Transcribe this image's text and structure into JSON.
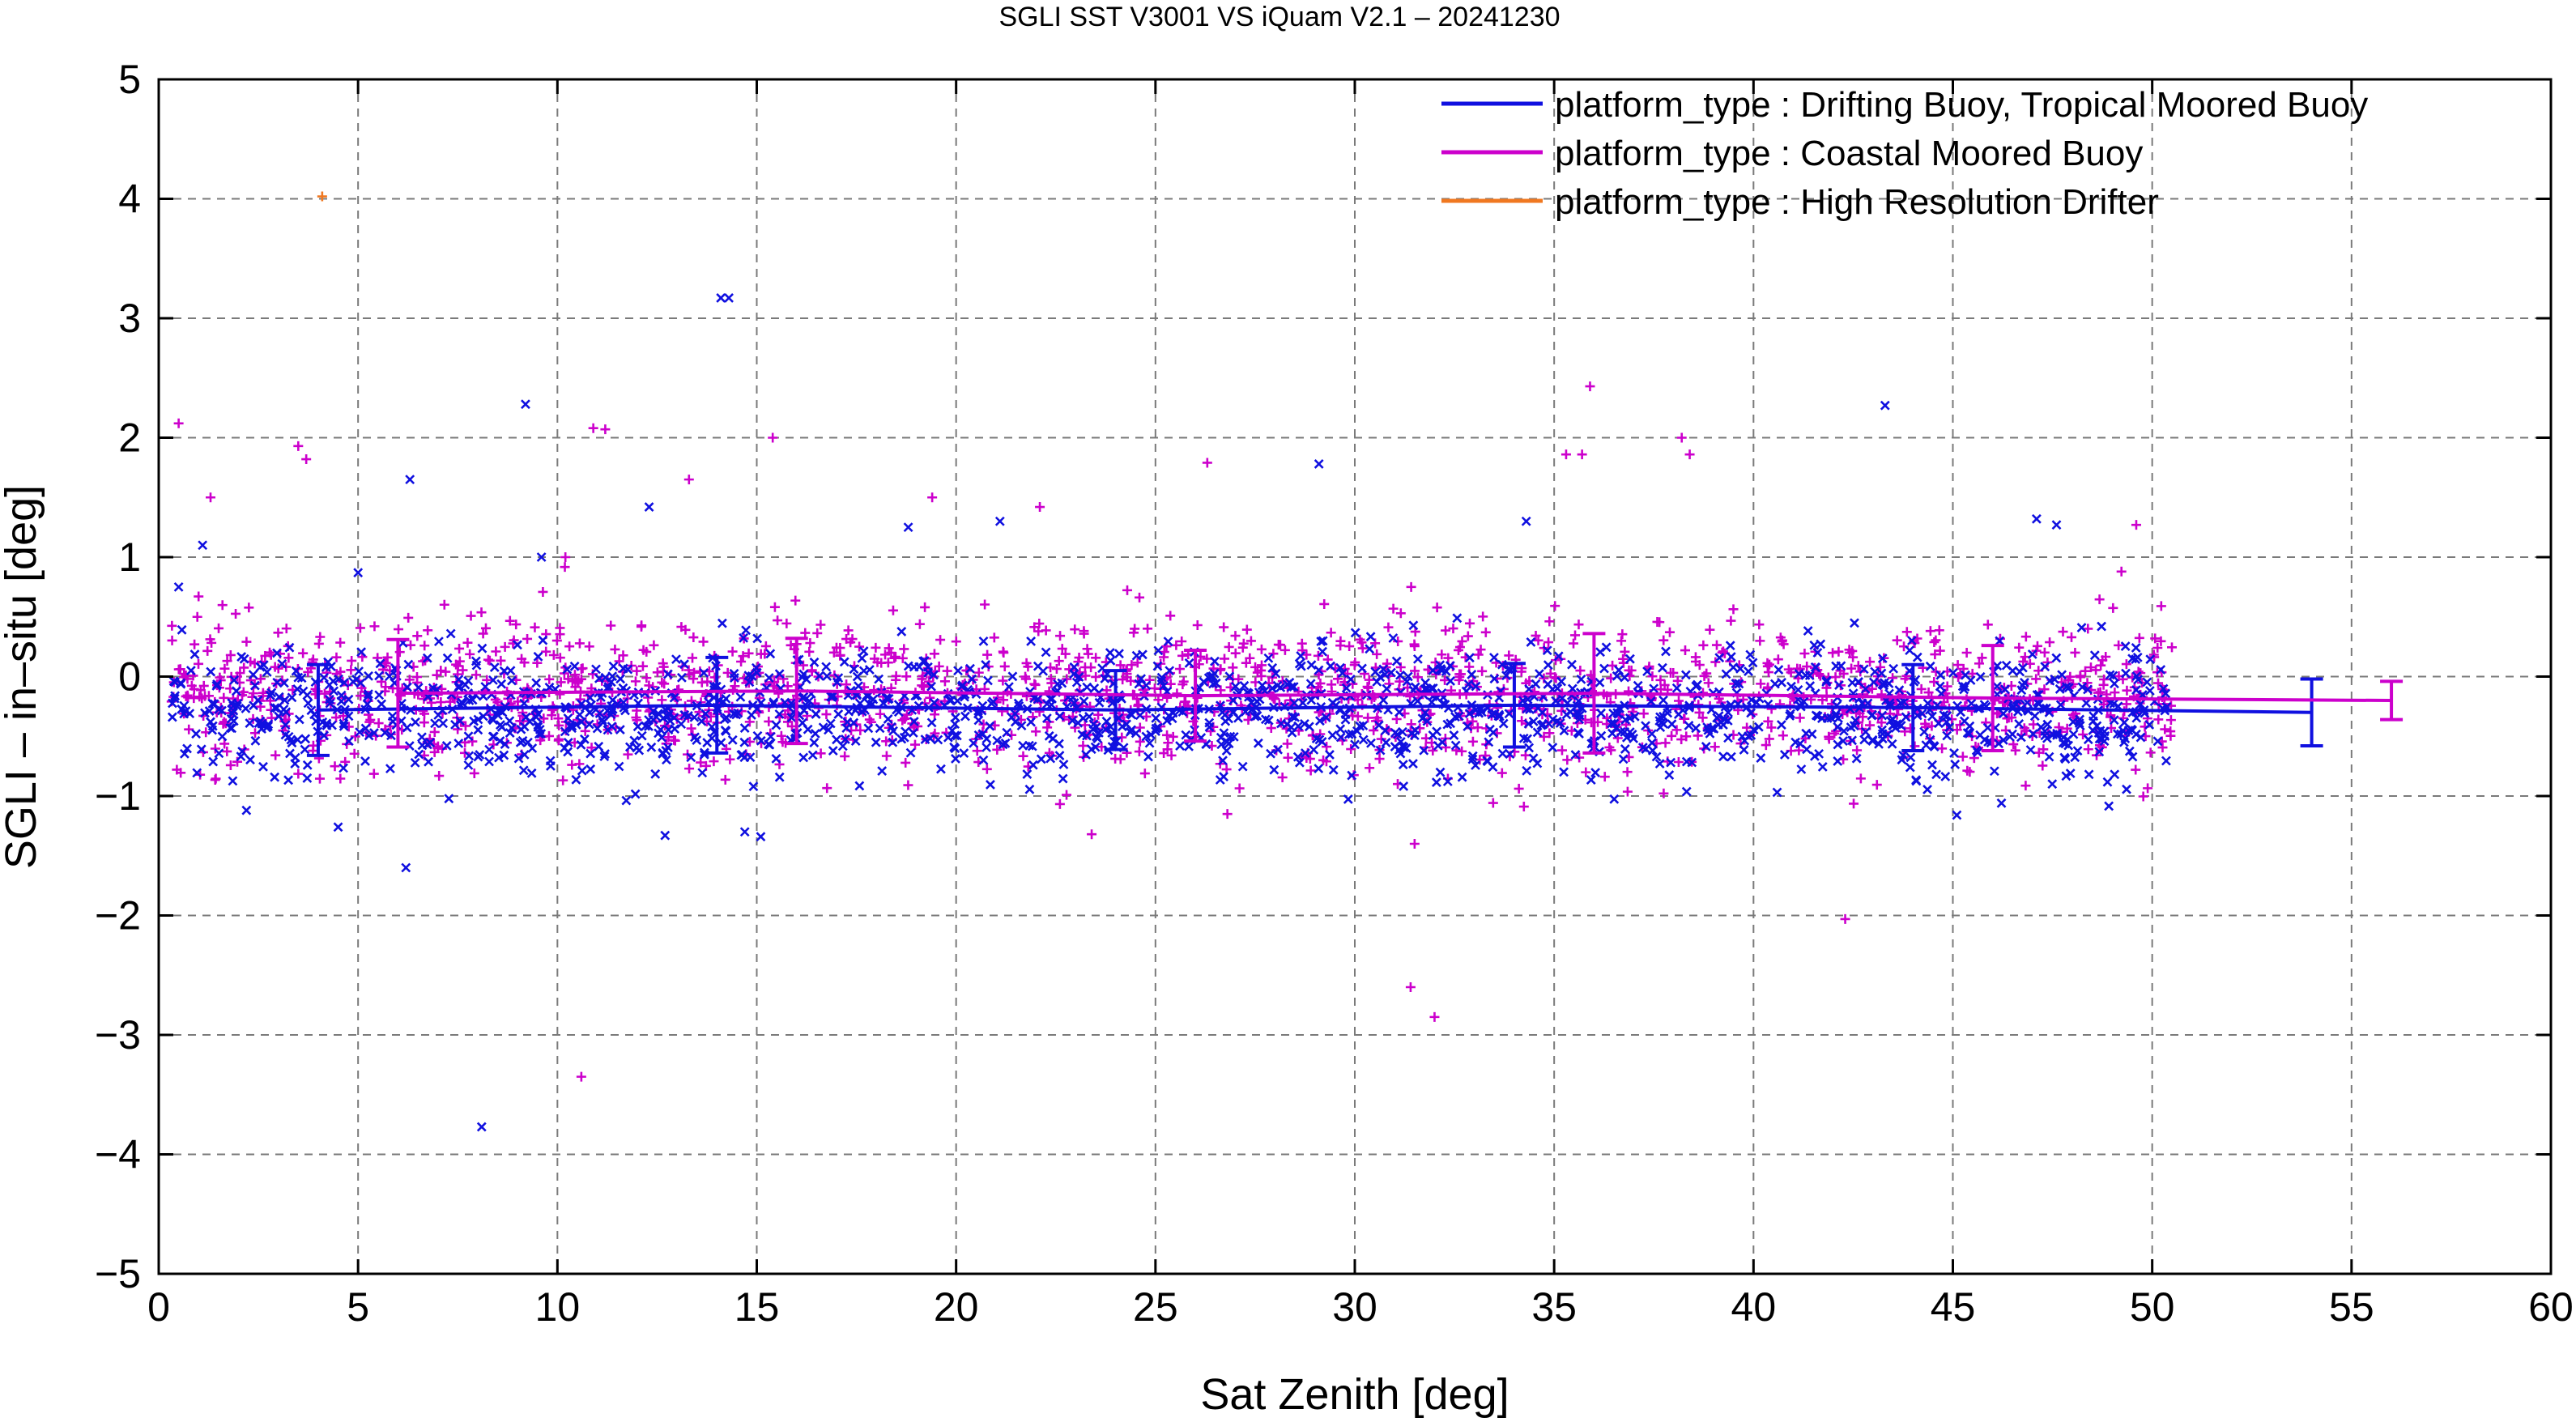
{
  "chart_data": {
    "type": "scatter",
    "title": "SGLI SST V3001 VS iQuam V2.1  – 20241230",
    "xlabel": "Sat Zenith [deg]",
    "ylabel": "SGLI – in–situ [deg]",
    "xlim": [
      0,
      60
    ],
    "ylim": [
      -5,
      5
    ],
    "xticks": [
      0,
      5,
      10,
      15,
      20,
      25,
      30,
      35,
      40,
      45,
      50,
      55,
      60
    ],
    "xtick_labels": [
      "0",
      "5",
      "10",
      "15",
      "20",
      "25",
      "30",
      "35",
      "40",
      "45",
      "50",
      "55",
      "60"
    ],
    "yticks": [
      -5,
      -4,
      -3,
      -2,
      -1,
      0,
      1,
      2,
      3,
      4,
      5
    ],
    "ytick_labels": [
      "−5",
      "−4",
      "−3",
      "−2",
      "−1",
      "0",
      "1",
      "2",
      "3",
      "4",
      "5"
    ],
    "grid": true,
    "legend_position": "top-right",
    "series": [
      {
        "name": "platform_type : Drifting Buoy, Tropical Moored Buoy",
        "color": "#1010e0",
        "marker": "x",
        "bin_mean": {
          "x": [
            4,
            14,
            24,
            34,
            44,
            54
          ],
          "y": [
            -0.28,
            -0.24,
            -0.28,
            -0.24,
            -0.26,
            -0.3
          ],
          "err": [
            0.38,
            0.4,
            0.33,
            0.35,
            0.36,
            0.28
          ]
        },
        "outliers": [
          {
            "x": 0.5,
            "y": 0.75
          },
          {
            "x": 1.1,
            "y": 1.1
          },
          {
            "x": 2.2,
            "y": -1.12
          },
          {
            "x": 4.5,
            "y": -1.26
          },
          {
            "x": 5.0,
            "y": 0.87
          },
          {
            "x": 6.2,
            "y": -1.6
          },
          {
            "x": 6.3,
            "y": 1.65
          },
          {
            "x": 8.1,
            "y": -3.77
          },
          {
            "x": 9.2,
            "y": 2.28
          },
          {
            "x": 9.6,
            "y": 1.0
          },
          {
            "x": 12.3,
            "y": 1.42
          },
          {
            "x": 12.7,
            "y": -1.33
          },
          {
            "x": 14.1,
            "y": 3.17
          },
          {
            "x": 14.3,
            "y": 3.17
          },
          {
            "x": 14.7,
            "y": -1.3
          },
          {
            "x": 15.1,
            "y": -1.34
          },
          {
            "x": 18.8,
            "y": 1.25
          },
          {
            "x": 21.1,
            "y": 1.3
          },
          {
            "x": 29.1,
            "y": 1.78
          },
          {
            "x": 34.3,
            "y": 1.3
          },
          {
            "x": 43.3,
            "y": 2.27
          },
          {
            "x": 47.1,
            "y": 1.32
          },
          {
            "x": 47.6,
            "y": 1.27
          },
          {
            "x": 45.1,
            "y": -1.16
          }
        ]
      },
      {
        "name": "platform_type : Coastal Moored Buoy",
        "color": "#cc00cc",
        "marker": "+",
        "bin_mean": {
          "x": [
            6,
            16,
            26,
            36,
            46,
            56
          ],
          "y": [
            -0.14,
            -0.12,
            -0.16,
            -0.14,
            -0.18,
            -0.2
          ],
          "err": [
            0.45,
            0.44,
            0.38,
            0.5,
            0.44,
            0.16
          ]
        },
        "outliers": [
          {
            "x": 0.5,
            "y": 2.12
          },
          {
            "x": 1.3,
            "y": 1.5
          },
          {
            "x": 3.5,
            "y": 1.93
          },
          {
            "x": 3.7,
            "y": 1.82
          },
          {
            "x": 10.2,
            "y": 1.0
          },
          {
            "x": 10.6,
            "y": -3.35
          },
          {
            "x": 10.9,
            "y": 2.08
          },
          {
            "x": 11.2,
            "y": 2.07
          },
          {
            "x": 13.3,
            "y": 1.65
          },
          {
            "x": 15.4,
            "y": 2.0
          },
          {
            "x": 19.4,
            "y": 1.5
          },
          {
            "x": 22.1,
            "y": 1.42
          },
          {
            "x": 26.3,
            "y": 1.79
          },
          {
            "x": 31.4,
            "y": -2.6
          },
          {
            "x": 31.5,
            "y": -1.4
          },
          {
            "x": 32.0,
            "y": -2.85
          },
          {
            "x": 35.3,
            "y": 1.86
          },
          {
            "x": 35.7,
            "y": 1.86
          },
          {
            "x": 35.9,
            "y": 2.43
          },
          {
            "x": 38.2,
            "y": 2.0
          },
          {
            "x": 38.4,
            "y": 1.86
          },
          {
            "x": 42.3,
            "y": -2.03
          },
          {
            "x": 49.6,
            "y": 1.27
          },
          {
            "x": 23.4,
            "y": -1.32
          }
        ]
      },
      {
        "name": "platform_type : High Resolution Drifter",
        "color": "#f07820",
        "marker": "+",
        "outliers": [
          {
            "x": 4.1,
            "y": 4.02
          }
        ]
      }
    ]
  }
}
